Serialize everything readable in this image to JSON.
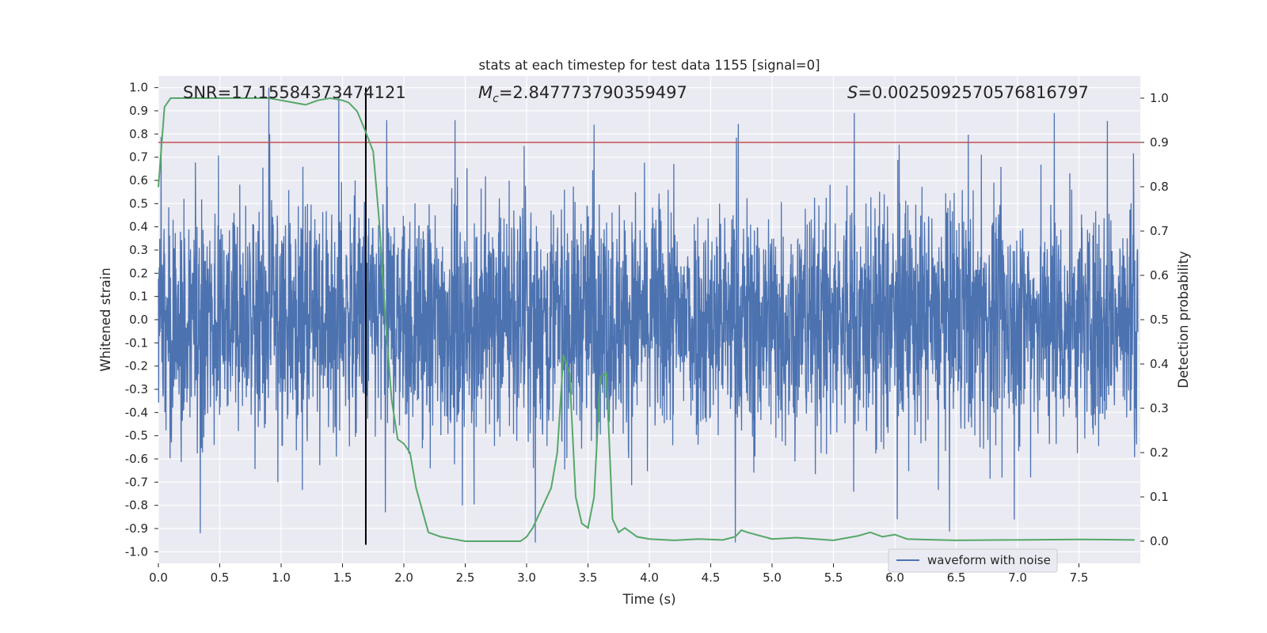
{
  "chart_data": {
    "type": "line",
    "title": "stats at each timestep for test data 1155 [signal=0]",
    "xlabel": "Time (s)",
    "ylabel_left": "Whitened strain",
    "ylabel_right": "Detection probability",
    "xlim": [
      0.0,
      8.0
    ],
    "ylim_left": [
      -1.05,
      1.05
    ],
    "ylim_right": [
      -0.05,
      1.05
    ],
    "x_ticks": [
      "0.0",
      "0.5",
      "1.0",
      "1.5",
      "2.0",
      "2.5",
      "3.0",
      "3.5",
      "4.0",
      "4.5",
      "5.0",
      "5.5",
      "6.0",
      "6.5",
      "7.0",
      "7.5"
    ],
    "y_ticks_left": [
      "-1.0",
      "-0.9",
      "-0.8",
      "-0.7",
      "-0.6",
      "-0.5",
      "-0.4",
      "-0.3",
      "-0.2",
      "-0.1",
      "0.0",
      "0.1",
      "0.2",
      "0.3",
      "0.4",
      "0.5",
      "0.6",
      "0.7",
      "0.8",
      "0.9",
      "1.0"
    ],
    "y_ticks_right": [
      "0.0",
      "0.1",
      "0.2",
      "0.3",
      "0.4",
      "0.5",
      "0.6",
      "0.7",
      "0.8",
      "0.9",
      "1.0"
    ],
    "grid": true,
    "annotations": {
      "snr": "SNR=17.15584373474121",
      "mc_symbol": "M",
      "mc_sub": "c",
      "mc_value": "=2.847773790359497",
      "s_symbol": "S",
      "s_value": "=0.0025092570576816797"
    },
    "threshold": {
      "axis": "right",
      "value": 0.9,
      "color": "#c44e52"
    },
    "vline": {
      "x": 1.69,
      "ymin": -0.97,
      "ymax": 1.0,
      "color": "#000000"
    },
    "series": [
      {
        "name": "waveform with noise",
        "axis": "left",
        "color": "#4c72b0",
        "kind": "noise",
        "typical_amplitude": 0.45,
        "min_value": -0.96,
        "max_value": 1.0,
        "peaks": [
          {
            "x": 0.9,
            "y": 1.0
          },
          {
            "x": 1.47,
            "y": 0.96
          },
          {
            "x": 3.55,
            "y": 0.84
          },
          {
            "x": 5.67,
            "y": 0.89
          },
          {
            "x": 7.3,
            "y": 0.89
          },
          {
            "x": 3.07,
            "y": -0.96
          },
          {
            "x": 4.7,
            "y": -0.96
          },
          {
            "x": 1.85,
            "y": -0.83
          },
          {
            "x": 6.02,
            "y": -0.86
          }
        ]
      },
      {
        "name": "detection probability",
        "axis": "right",
        "color": "#55a868",
        "x": [
          0.0,
          0.05,
          0.1,
          0.2,
          0.3,
          0.5,
          0.7,
          0.9,
          1.0,
          1.1,
          1.2,
          1.3,
          1.4,
          1.5,
          1.55,
          1.62,
          1.68,
          1.75,
          1.8,
          1.85,
          1.9,
          1.95,
          2.0,
          2.05,
          2.1,
          2.15,
          2.2,
          2.3,
          2.4,
          2.5,
          2.6,
          2.8,
          2.95,
          3.0,
          3.05,
          3.1,
          3.15,
          3.2,
          3.25,
          3.3,
          3.35,
          3.4,
          3.45,
          3.5,
          3.55,
          3.6,
          3.65,
          3.7,
          3.75,
          3.8,
          3.85,
          3.9,
          4.0,
          4.2,
          4.4,
          4.6,
          4.7,
          4.75,
          4.8,
          5.0,
          5.2,
          5.5,
          5.7,
          5.8,
          5.9,
          6.0,
          6.1,
          6.2,
          6.5,
          7.0,
          7.5,
          7.95
        ],
        "y": [
          0.8,
          0.98,
          1.0,
          1.0,
          1.0,
          1.0,
          1.0,
          1.0,
          0.995,
          0.99,
          0.985,
          0.995,
          1.0,
          0.995,
          0.99,
          0.97,
          0.93,
          0.88,
          0.72,
          0.5,
          0.32,
          0.23,
          0.22,
          0.2,
          0.12,
          0.07,
          0.02,
          0.01,
          0.005,
          0.0,
          0.0,
          0.0,
          0.0,
          0.01,
          0.03,
          0.06,
          0.09,
          0.12,
          0.2,
          0.42,
          0.38,
          0.1,
          0.04,
          0.03,
          0.1,
          0.37,
          0.38,
          0.05,
          0.02,
          0.03,
          0.02,
          0.01,
          0.005,
          0.002,
          0.005,
          0.003,
          0.01,
          0.025,
          0.02,
          0.005,
          0.008,
          0.002,
          0.012,
          0.02,
          0.01,
          0.015,
          0.005,
          0.004,
          0.002,
          0.003,
          0.004,
          0.003
        ]
      }
    ],
    "legend": {
      "position": "bottom-right",
      "entries": [
        "waveform with noise"
      ]
    }
  }
}
